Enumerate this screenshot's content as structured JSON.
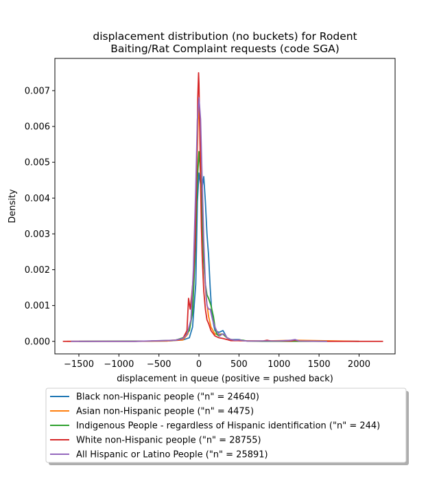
{
  "chart_data": {
    "type": "line",
    "title_lines": [
      "displacement distribution (no buckets)  for Rodent",
      "Baiting/Rat Complaint requests (code SGA)"
    ],
    "xlabel": "displacement in queue (positive = pushed back)",
    "ylabel": "Density",
    "xlim": [
      -1800,
      2450
    ],
    "ylim": [
      -0.00035,
      0.0079
    ],
    "x_ticks": [
      -1500,
      -1000,
      -500,
      0,
      500,
      1000,
      1500,
      2000
    ],
    "x_tick_labels": [
      "−1500",
      "−1000",
      "−500",
      "0",
      "500",
      "1000",
      "1500",
      "2000"
    ],
    "y_ticks": [
      0,
      0.001,
      0.002,
      0.003,
      0.004,
      0.005,
      0.006,
      0.007
    ],
    "y_tick_labels": [
      "0.000",
      "0.001",
      "0.002",
      "0.003",
      "0.004",
      "0.005",
      "0.006",
      "0.007"
    ],
    "grid": false,
    "legend_position": "below",
    "series": [
      {
        "name": "Black non-Hispanic people (\"n\" = 24640)",
        "color": "#1f77b4",
        "x": [
          -1600,
          -800,
          -400,
          -200,
          -120,
          -80,
          -40,
          -20,
          0,
          20,
          40,
          60,
          80,
          100,
          120,
          140,
          160,
          180,
          200,
          250,
          300,
          350,
          400,
          500,
          550,
          600,
          800,
          1000,
          1200,
          1400,
          2000
        ],
        "y": [
          0,
          0,
          1e-05,
          4e-05,
          0.0001,
          0.0004,
          0.0016,
          0.0039,
          0.0047,
          0.0044,
          0.0043,
          0.0046,
          0.0039,
          0.003,
          0.0024,
          0.0015,
          0.0008,
          0.0005,
          0.0003,
          0.00025,
          0.0003,
          0.0001,
          5e-05,
          5e-05,
          2e-05,
          1e-05,
          1e-05,
          1e-05,
          3e-05,
          1e-05,
          0
        ]
      },
      {
        "name": "Asian non-Hispanic people (\"n\" = 4475)",
        "color": "#ff7f0e",
        "x": [
          -1650,
          -800,
          -400,
          -200,
          -140,
          -100,
          -60,
          -30,
          -10,
          0,
          10,
          30,
          60,
          90,
          120,
          150,
          200,
          250,
          300,
          350,
          400,
          500,
          800,
          1200,
          2000
        ],
        "y": [
          0,
          0,
          1e-05,
          4e-05,
          0.0002,
          0.0006,
          0.002,
          0.0045,
          0.0062,
          0.0066,
          0.006,
          0.004,
          0.0022,
          0.0012,
          0.0007,
          0.0004,
          0.0002,
          0.0002,
          0.0002,
          0.0001,
          5e-05,
          2e-05,
          1e-05,
          3e-05,
          0
        ]
      },
      {
        "name": "Indigenous People - regardless of Hispanic identification (\"n\" = 244)",
        "color": "#2ca02c",
        "x": [
          -1500,
          -600,
          -300,
          -200,
          -120,
          -80,
          -50,
          -20,
          0,
          20,
          40,
          60,
          80,
          100,
          120,
          150,
          180,
          200,
          220,
          250,
          280,
          300,
          350,
          400,
          450,
          500,
          550,
          600,
          800,
          1600
        ],
        "y": [
          0,
          1e-05,
          3e-05,
          0.0001,
          0.0003,
          0.0008,
          0.0023,
          0.0045,
          0.0053,
          0.0047,
          0.0035,
          0.0022,
          0.0016,
          0.0013,
          0.0012,
          0.001,
          0.0007,
          0.0004,
          0.0002,
          0.00015,
          0.0002,
          0.0002,
          0.0001,
          5e-05,
          2e-05,
          4e-05,
          3e-05,
          1e-05,
          0,
          0
        ]
      },
      {
        "name": "White non-Hispanic people (\"n\" = 28755)",
        "color": "#d62728",
        "x": [
          -1700,
          -800,
          -400,
          -250,
          -200,
          -150,
          -130,
          -110,
          -90,
          -70,
          -50,
          -30,
          -15,
          -5,
          0,
          10,
          20,
          30,
          40,
          60,
          80,
          100,
          120,
          150,
          200,
          250,
          300,
          350,
          400,
          500,
          600,
          800,
          850,
          900,
          1150,
          1200,
          1250,
          1500,
          2300
        ],
        "y": [
          0,
          0,
          2e-05,
          4e-05,
          8e-05,
          0.0003,
          0.0012,
          0.0009,
          0.0013,
          0.0018,
          0.0026,
          0.0045,
          0.0068,
          0.0075,
          0.0072,
          0.006,
          0.0045,
          0.0032,
          0.0024,
          0.0014,
          0.0009,
          0.0006,
          0.0005,
          0.0003,
          0.00015,
          0.0001,
          8e-05,
          5e-05,
          2e-05,
          2e-05,
          1e-05,
          1e-05,
          3e-05,
          1e-05,
          1e-05,
          3e-05,
          1e-05,
          0,
          0
        ]
      },
      {
        "name": "All Hispanic or Latino People (\"n\" = 25891)",
        "color": "#9467bd",
        "x": [
          -1600,
          -800,
          -500,
          -300,
          -200,
          -150,
          -100,
          -70,
          -40,
          -20,
          0,
          20,
          40,
          60,
          80,
          100,
          120,
          140,
          170,
          200,
          230,
          260,
          290,
          320,
          350,
          400,
          450,
          500,
          550,
          600,
          800,
          1000,
          1150,
          1200,
          1250,
          1600
        ],
        "y": [
          0,
          0,
          2e-05,
          3e-05,
          8e-05,
          0.0002,
          0.0006,
          0.002,
          0.0043,
          0.0062,
          0.0068,
          0.0062,
          0.0045,
          0.0028,
          0.0016,
          0.001,
          0.0009,
          0.0009,
          0.0006,
          0.0004,
          0.00025,
          0.00015,
          0.0002,
          0.0002,
          0.0001,
          5e-05,
          3e-05,
          4e-05,
          2e-05,
          1e-05,
          1e-05,
          1e-05,
          3e-05,
          5e-05,
          1e-05,
          0
        ]
      }
    ]
  }
}
